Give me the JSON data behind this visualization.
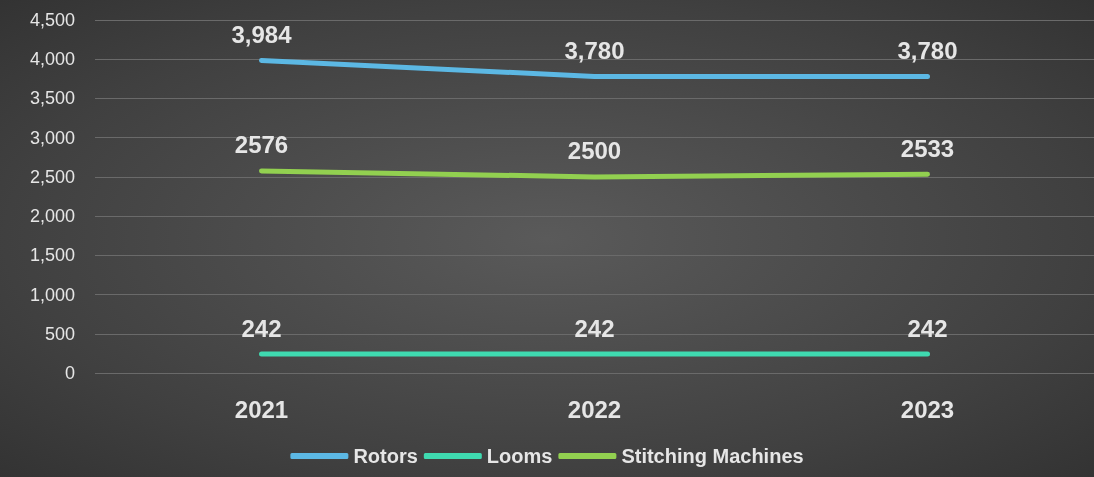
{
  "chart_data": {
    "type": "line",
    "categories": [
      "2021",
      "2022",
      "2023"
    ],
    "series": [
      {
        "name": "Rotors",
        "color": "#5cb8e4",
        "values": [
          3984,
          3780,
          3780
        ],
        "value_labels": [
          "3,984",
          "3,780",
          "3,780"
        ]
      },
      {
        "name": "Looms",
        "color": "#3fdab0",
        "values": [
          242,
          242,
          242
        ],
        "value_labels": [
          "242",
          "242",
          "242"
        ]
      },
      {
        "name": "Stitching Machines",
        "color": "#92d050",
        "values": [
          2576,
          2500,
          2533
        ],
        "value_labels": [
          "2576",
          "2500",
          "2533"
        ]
      }
    ],
    "ylim": [
      0,
      4500
    ],
    "yticks": [
      0,
      500,
      {
        "value": 1000,
        "label": "1,000"
      },
      {
        "value": 1500,
        "label": "1,500"
      },
      {
        "value": 2000,
        "label": "2,000"
      },
      {
        "value": 2500,
        "label": "2,500"
      },
      {
        "value": 3000,
        "label": "3,000"
      },
      {
        "value": 3500,
        "label": "3,500"
      },
      {
        "value": 4000,
        "label": "4,000"
      },
      {
        "value": 4500,
        "label": "4,500"
      }
    ],
    "grid": "y",
    "legend": "bottom",
    "marker": "none",
    "line_style": "solid"
  }
}
